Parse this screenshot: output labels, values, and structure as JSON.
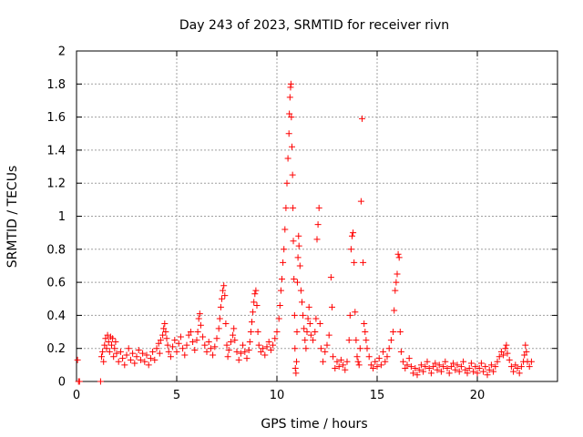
{
  "chart_data": {
    "type": "scatter",
    "title": "Day 243 of 2023, SRMTID for receiver rivn",
    "xlabel": "GPS time / hours",
    "ylabel": "SRMTID / TECUs",
    "xlim": [
      0,
      24
    ],
    "ylim": [
      0,
      2
    ],
    "x_ticks": [
      0,
      5,
      10,
      15,
      20
    ],
    "x_tick_labels": [
      "0",
      "5",
      "10",
      "15",
      "20"
    ],
    "y_ticks": [
      0,
      0.2,
      0.4,
      0.6,
      0.8,
      1,
      1.2,
      1.4,
      1.6,
      1.8,
      2
    ],
    "y_tick_labels": [
      "0",
      "0.2",
      "0.4",
      "0.6",
      "0.8",
      "1",
      "1.2",
      "1.4",
      "1.6",
      "1.8",
      "2"
    ],
    "grid": true,
    "marker": "plus",
    "color": "#ff0000",
    "series": [
      {
        "name": "SRMTID",
        "points": [
          [
            0.05,
            0.13
          ],
          [
            0.1,
            0.0
          ],
          [
            0.15,
            0.0
          ],
          [
            1.2,
            0.0
          ],
          [
            1.25,
            0.15
          ],
          [
            1.3,
            0.18
          ],
          [
            1.35,
            0.12
          ],
          [
            1.4,
            0.22
          ],
          [
            1.45,
            0.26
          ],
          [
            1.5,
            0.2
          ],
          [
            1.55,
            0.28
          ],
          [
            1.6,
            0.24
          ],
          [
            1.65,
            0.18
          ],
          [
            1.7,
            0.27
          ],
          [
            1.75,
            0.22
          ],
          [
            1.8,
            0.26
          ],
          [
            1.85,
            0.15
          ],
          [
            1.9,
            0.2
          ],
          [
            1.95,
            0.24
          ],
          [
            2.0,
            0.17
          ],
          [
            2.1,
            0.12
          ],
          [
            2.2,
            0.18
          ],
          [
            2.3,
            0.14
          ],
          [
            2.4,
            0.1
          ],
          [
            2.5,
            0.16
          ],
          [
            2.6,
            0.2
          ],
          [
            2.7,
            0.13
          ],
          [
            2.8,
            0.17
          ],
          [
            2.9,
            0.11
          ],
          [
            3.0,
            0.15
          ],
          [
            3.1,
            0.19
          ],
          [
            3.2,
            0.13
          ],
          [
            3.3,
            0.17
          ],
          [
            3.4,
            0.12
          ],
          [
            3.5,
            0.16
          ],
          [
            3.6,
            0.1
          ],
          [
            3.7,
            0.14
          ],
          [
            3.8,
            0.18
          ],
          [
            3.9,
            0.13
          ],
          [
            4.0,
            0.2
          ],
          [
            4.1,
            0.23
          ],
          [
            4.15,
            0.17
          ],
          [
            4.2,
            0.25
          ],
          [
            4.3,
            0.28
          ],
          [
            4.35,
            0.32
          ],
          [
            4.4,
            0.35
          ],
          [
            4.45,
            0.3
          ],
          [
            4.5,
            0.26
          ],
          [
            4.55,
            0.22
          ],
          [
            4.6,
            0.18
          ],
          [
            4.7,
            0.15
          ],
          [
            4.8,
            0.21
          ],
          [
            4.9,
            0.25
          ],
          [
            5.0,
            0.18
          ],
          [
            5.1,
            0.23
          ],
          [
            5.2,
            0.27
          ],
          [
            5.3,
            0.2
          ],
          [
            5.4,
            0.16
          ],
          [
            5.5,
            0.22
          ],
          [
            5.6,
            0.28
          ],
          [
            5.7,
            0.3
          ],
          [
            5.8,
            0.24
          ],
          [
            5.9,
            0.19
          ],
          [
            6.0,
            0.25
          ],
          [
            6.05,
            0.3
          ],
          [
            6.1,
            0.38
          ],
          [
            6.15,
            0.41
          ],
          [
            6.2,
            0.34
          ],
          [
            6.3,
            0.27
          ],
          [
            6.4,
            0.22
          ],
          [
            6.5,
            0.18
          ],
          [
            6.6,
            0.24
          ],
          [
            6.7,
            0.2
          ],
          [
            6.8,
            0.16
          ],
          [
            6.9,
            0.21
          ],
          [
            7.0,
            0.26
          ],
          [
            7.1,
            0.32
          ],
          [
            7.15,
            0.38
          ],
          [
            7.2,
            0.45
          ],
          [
            7.25,
            0.5
          ],
          [
            7.3,
            0.55
          ],
          [
            7.35,
            0.58
          ],
          [
            7.4,
            0.52
          ],
          [
            7.45,
            0.35
          ],
          [
            7.5,
            0.22
          ],
          [
            7.55,
            0.15
          ],
          [
            7.6,
            0.19
          ],
          [
            7.7,
            0.24
          ],
          [
            7.8,
            0.28
          ],
          [
            7.85,
            0.32
          ],
          [
            7.9,
            0.25
          ],
          [
            8.0,
            0.18
          ],
          [
            8.1,
            0.13
          ],
          [
            8.2,
            0.17
          ],
          [
            8.3,
            0.22
          ],
          [
            8.4,
            0.18
          ],
          [
            8.5,
            0.14
          ],
          [
            8.6,
            0.19
          ],
          [
            8.65,
            0.24
          ],
          [
            8.7,
            0.3
          ],
          [
            8.75,
            0.36
          ],
          [
            8.8,
            0.42
          ],
          [
            8.85,
            0.48
          ],
          [
            8.9,
            0.53
          ],
          [
            8.95,
            0.55
          ],
          [
            9.0,
            0.46
          ],
          [
            9.05,
            0.3
          ],
          [
            9.1,
            0.22
          ],
          [
            9.2,
            0.18
          ],
          [
            9.3,
            0.2
          ],
          [
            9.4,
            0.16
          ],
          [
            9.5,
            0.21
          ],
          [
            9.6,
            0.24
          ],
          [
            9.7,
            0.19
          ],
          [
            9.8,
            0.22
          ],
          [
            9.9,
            0.26
          ],
          [
            10.0,
            0.3
          ],
          [
            10.1,
            0.38
          ],
          [
            10.15,
            0.46
          ],
          [
            10.2,
            0.55
          ],
          [
            10.25,
            0.62
          ],
          [
            10.3,
            0.72
          ],
          [
            10.35,
            0.8
          ],
          [
            10.4,
            0.92
          ],
          [
            10.45,
            1.05
          ],
          [
            10.5,
            1.2
          ],
          [
            10.55,
            1.35
          ],
          [
            10.6,
            1.5
          ],
          [
            10.62,
            1.62
          ],
          [
            10.65,
            1.72
          ],
          [
            10.68,
            1.78
          ],
          [
            10.7,
            1.8
          ],
          [
            10.72,
            1.6
          ],
          [
            10.75,
            1.42
          ],
          [
            10.78,
            1.25
          ],
          [
            10.8,
            1.05
          ],
          [
            10.82,
            0.85
          ],
          [
            10.85,
            0.62
          ],
          [
            10.88,
            0.4
          ],
          [
            10.9,
            0.2
          ],
          [
            10.92,
            0.08
          ],
          [
            10.95,
            0.05
          ],
          [
            10.98,
            0.12
          ],
          [
            11.0,
            0.3
          ],
          [
            11.02,
            0.6
          ],
          [
            11.05,
            0.75
          ],
          [
            11.08,
            0.88
          ],
          [
            11.1,
            0.82
          ],
          [
            11.15,
            0.7
          ],
          [
            11.2,
            0.55
          ],
          [
            11.25,
            0.48
          ],
          [
            11.3,
            0.4
          ],
          [
            11.35,
            0.32
          ],
          [
            11.4,
            0.25
          ],
          [
            11.45,
            0.2
          ],
          [
            11.5,
            0.3
          ],
          [
            11.55,
            0.38
          ],
          [
            11.6,
            0.45
          ],
          [
            11.65,
            0.35
          ],
          [
            11.7,
            0.28
          ],
          [
            11.8,
            0.25
          ],
          [
            11.9,
            0.3
          ],
          [
            11.95,
            0.38
          ],
          [
            12.0,
            0.86
          ],
          [
            12.05,
            0.95
          ],
          [
            12.1,
            1.05
          ],
          [
            12.15,
            0.35
          ],
          [
            12.2,
            0.2
          ],
          [
            12.3,
            0.12
          ],
          [
            12.4,
            0.18
          ],
          [
            12.5,
            0.22
          ],
          [
            12.6,
            0.28
          ],
          [
            12.7,
            0.63
          ],
          [
            12.75,
            0.45
          ],
          [
            12.8,
            0.15
          ],
          [
            12.9,
            0.08
          ],
          [
            13.0,
            0.12
          ],
          [
            13.1,
            0.09
          ],
          [
            13.2,
            0.13
          ],
          [
            13.3,
            0.1
          ],
          [
            13.4,
            0.07
          ],
          [
            13.5,
            0.12
          ],
          [
            13.6,
            0.25
          ],
          [
            13.65,
            0.4
          ],
          [
            13.7,
            0.8
          ],
          [
            13.75,
            0.88
          ],
          [
            13.8,
            0.9
          ],
          [
            13.85,
            0.72
          ],
          [
            13.9,
            0.42
          ],
          [
            13.95,
            0.25
          ],
          [
            14.0,
            0.15
          ],
          [
            14.05,
            0.12
          ],
          [
            14.1,
            0.1
          ],
          [
            14.15,
            0.2
          ],
          [
            14.2,
            1.09
          ],
          [
            14.25,
            1.59
          ],
          [
            14.3,
            0.72
          ],
          [
            14.35,
            0.35
          ],
          [
            14.4,
            0.3
          ],
          [
            14.45,
            0.25
          ],
          [
            14.5,
            0.2
          ],
          [
            14.6,
            0.15
          ],
          [
            14.7,
            0.1
          ],
          [
            14.8,
            0.08
          ],
          [
            14.9,
            0.12
          ],
          [
            15.0,
            0.09
          ],
          [
            15.1,
            0.14
          ],
          [
            15.2,
            0.1
          ],
          [
            15.3,
            0.18
          ],
          [
            15.4,
            0.12
          ],
          [
            15.5,
            0.15
          ],
          [
            15.6,
            0.2
          ],
          [
            15.7,
            0.25
          ],
          [
            15.8,
            0.3
          ],
          [
            15.85,
            0.43
          ],
          [
            15.9,
            0.55
          ],
          [
            15.95,
            0.6
          ],
          [
            16.0,
            0.65
          ],
          [
            16.05,
            0.77
          ],
          [
            16.1,
            0.75
          ],
          [
            16.15,
            0.3
          ],
          [
            16.2,
            0.18
          ],
          [
            16.3,
            0.12
          ],
          [
            16.4,
            0.08
          ],
          [
            16.5,
            0.1
          ],
          [
            16.6,
            0.14
          ],
          [
            16.7,
            0.09
          ],
          [
            16.8,
            0.05
          ],
          [
            16.9,
            0.08
          ],
          [
            17.0,
            0.04
          ],
          [
            17.1,
            0.07
          ],
          [
            17.2,
            0.1
          ],
          [
            17.3,
            0.06
          ],
          [
            17.4,
            0.09
          ],
          [
            17.5,
            0.12
          ],
          [
            17.6,
            0.08
          ],
          [
            17.7,
            0.05
          ],
          [
            17.8,
            0.09
          ],
          [
            17.9,
            0.11
          ],
          [
            18.0,
            0.07
          ],
          [
            18.1,
            0.1
          ],
          [
            18.2,
            0.06
          ],
          [
            18.3,
            0.09
          ],
          [
            18.4,
            0.12
          ],
          [
            18.5,
            0.08
          ],
          [
            18.6,
            0.05
          ],
          [
            18.7,
            0.09
          ],
          [
            18.8,
            0.11
          ],
          [
            18.9,
            0.07
          ],
          [
            19.0,
            0.1
          ],
          [
            19.1,
            0.06
          ],
          [
            19.2,
            0.09
          ],
          [
            19.3,
            0.12
          ],
          [
            19.4,
            0.07
          ],
          [
            19.5,
            0.05
          ],
          [
            19.6,
            0.08
          ],
          [
            19.7,
            0.11
          ],
          [
            19.8,
            0.06
          ],
          [
            19.9,
            0.09
          ],
          [
            20.0,
            0.05
          ],
          [
            20.1,
            0.08
          ],
          [
            20.2,
            0.11
          ],
          [
            20.3,
            0.06
          ],
          [
            20.4,
            0.09
          ],
          [
            20.5,
            0.04
          ],
          [
            20.6,
            0.07
          ],
          [
            20.7,
            0.1
          ],
          [
            20.8,
            0.06
          ],
          [
            20.9,
            0.09
          ],
          [
            21.0,
            0.12
          ],
          [
            21.1,
            0.15
          ],
          [
            21.2,
            0.18
          ],
          [
            21.3,
            0.16
          ],
          [
            21.4,
            0.2
          ],
          [
            21.45,
            0.22
          ],
          [
            21.5,
            0.17
          ],
          [
            21.6,
            0.13
          ],
          [
            21.7,
            0.09
          ],
          [
            21.8,
            0.06
          ],
          [
            21.9,
            0.1
          ],
          [
            22.0,
            0.08
          ],
          [
            22.1,
            0.05
          ],
          [
            22.2,
            0.09
          ],
          [
            22.3,
            0.12
          ],
          [
            22.35,
            0.16
          ],
          [
            22.4,
            0.22
          ],
          [
            22.45,
            0.18
          ],
          [
            22.5,
            0.12
          ],
          [
            22.6,
            0.09
          ],
          [
            22.7,
            0.12
          ]
        ]
      }
    ]
  }
}
